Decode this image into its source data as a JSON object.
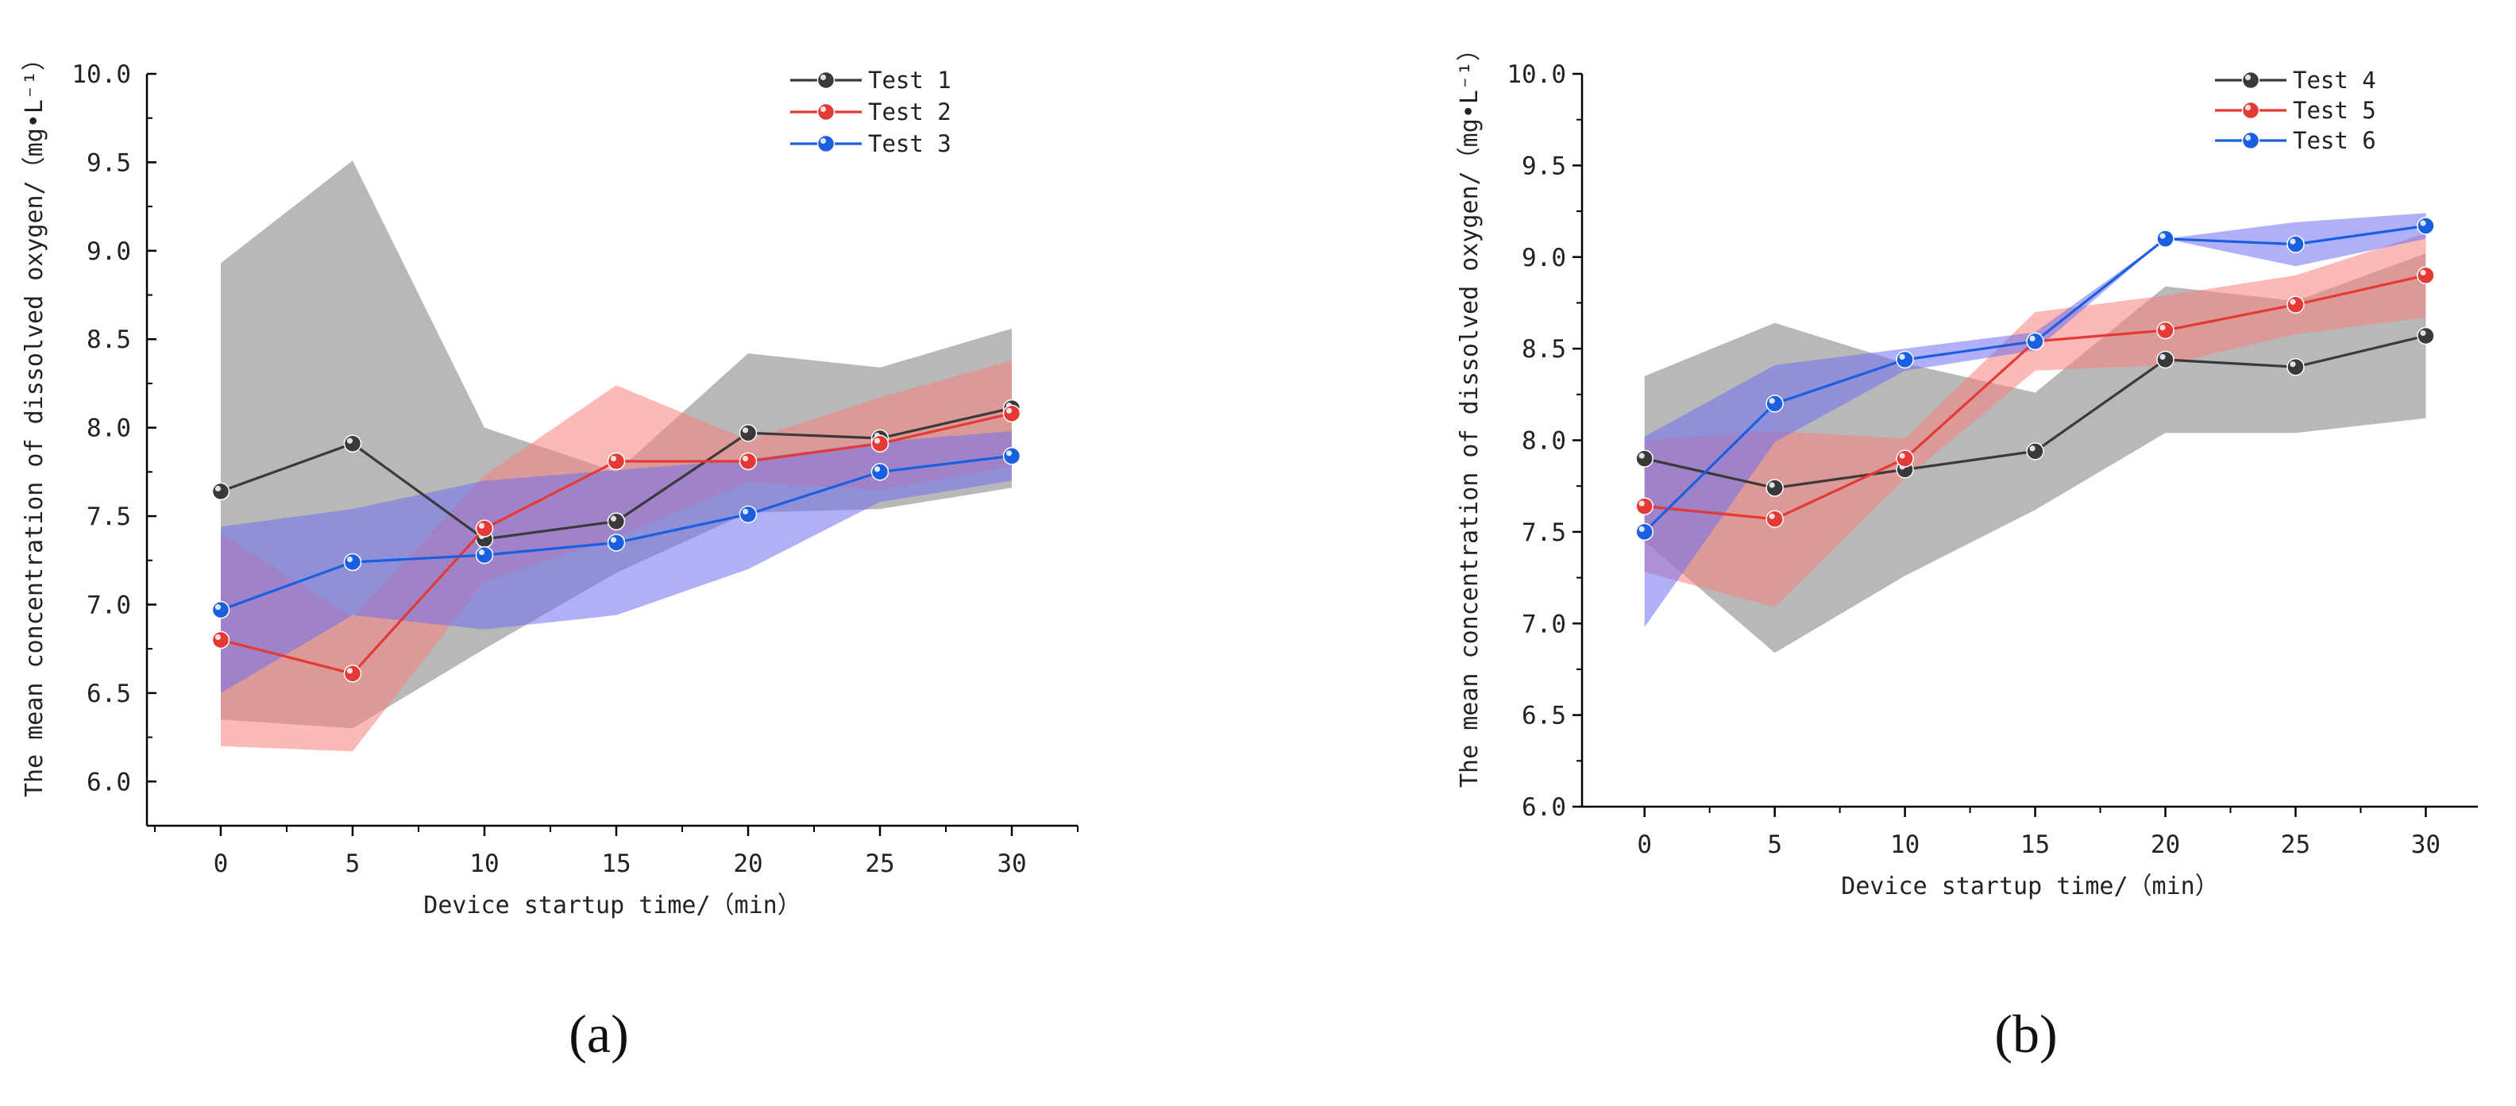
{
  "figure": {
    "panels": [
      "a",
      "b"
    ]
  },
  "chart_data": [
    {
      "type": "line",
      "panel_label": "(a)",
      "title": "",
      "xlabel": "Device startup time/（min）",
      "ylabel": "The mean concentration of dissolved oxygen/（mg•L⁻¹）",
      "x": [
        0,
        5,
        10,
        15,
        20,
        25,
        30
      ],
      "xticks": [
        "0",
        "5",
        "10",
        "15",
        "20",
        "25",
        "30"
      ],
      "yticks": [
        "6.0",
        "6.5",
        "7.0",
        "7.5",
        "8.0",
        "8.5",
        "9.0",
        "9.5",
        "10.0"
      ],
      "xlim": [
        -2.8,
        32.5
      ],
      "ylim": [
        5.75,
        10.0
      ],
      "legend_position": "top-right",
      "series": [
        {
          "name": "Test 1",
          "color": "#3a3a3a",
          "band_color": "#8c8c8c",
          "values": [
            7.64,
            7.91,
            7.37,
            7.47,
            7.97,
            7.94,
            8.11
          ],
          "upper": [
            8.93,
            9.51,
            8.0,
            7.75,
            8.42,
            8.34,
            8.56
          ],
          "lower": [
            6.35,
            6.3,
            6.75,
            7.18,
            7.52,
            7.54,
            7.66
          ]
        },
        {
          "name": "Test 2",
          "color": "#e53935",
          "band_color": "#f7807c",
          "values": [
            6.8,
            6.61,
            7.43,
            7.81,
            7.81,
            7.91,
            8.08
          ],
          "upper": [
            7.4,
            6.93,
            7.73,
            8.24,
            7.93,
            8.17,
            8.38
          ],
          "lower": [
            6.2,
            6.17,
            7.13,
            7.38,
            7.69,
            7.65,
            7.78
          ]
        },
        {
          "name": "Test 3",
          "color": "#1a5fe0",
          "band_color": "#6f6ff2",
          "values": [
            6.97,
            7.24,
            7.28,
            7.35,
            7.51,
            7.75,
            7.84
          ],
          "upper": [
            7.44,
            7.54,
            7.7,
            7.76,
            7.82,
            7.92,
            7.98
          ],
          "lower": [
            6.5,
            6.94,
            6.86,
            6.94,
            7.2,
            7.58,
            7.7
          ]
        }
      ]
    },
    {
      "type": "line",
      "panel_label": "(b)",
      "title": "",
      "xlabel": "Device startup time/（min）",
      "ylabel": "The mean concentration of dissolved oxygen/（mg•L⁻¹）",
      "x": [
        0,
        5,
        10,
        15,
        20,
        25,
        30
      ],
      "xticks": [
        "0",
        "5",
        "10",
        "15",
        "20",
        "25",
        "30"
      ],
      "yticks": [
        "6.0",
        "6.5",
        "7.0",
        "7.5",
        "8.0",
        "8.5",
        "9.0",
        "9.5",
        "10.0"
      ],
      "xlim": [
        -2.4,
        32.0
      ],
      "ylim": [
        6.0,
        10.0
      ],
      "legend_position": "top-right",
      "series": [
        {
          "name": "Test 4",
          "color": "#3a3a3a",
          "band_color": "#8c8c8c",
          "values": [
            7.9,
            7.74,
            7.84,
            7.94,
            8.44,
            8.4,
            8.57
          ],
          "upper": [
            8.35,
            8.64,
            8.42,
            8.26,
            8.84,
            8.76,
            9.02
          ],
          "lower": [
            7.45,
            6.84,
            7.26,
            7.62,
            8.04,
            8.04,
            8.12
          ]
        },
        {
          "name": "Test 5",
          "color": "#e53935",
          "band_color": "#f7807c",
          "values": [
            7.64,
            7.57,
            7.9,
            8.54,
            8.6,
            8.74,
            8.9
          ],
          "upper": [
            8.0,
            8.05,
            8.01,
            8.7,
            8.79,
            8.9,
            9.13
          ],
          "lower": [
            7.28,
            7.09,
            7.79,
            8.38,
            8.41,
            8.58,
            8.67
          ]
        },
        {
          "name": "Test 6",
          "color": "#1a5fe0",
          "band_color": "#6f6ff2",
          "values": [
            7.5,
            8.2,
            8.44,
            8.54,
            9.1,
            9.07,
            9.17
          ],
          "upper": [
            8.02,
            8.41,
            8.5,
            8.59,
            9.1,
            9.19,
            9.24
          ],
          "lower": [
            6.98,
            7.99,
            8.38,
            8.49,
            9.1,
            8.95,
            9.1
          ]
        }
      ]
    }
  ]
}
